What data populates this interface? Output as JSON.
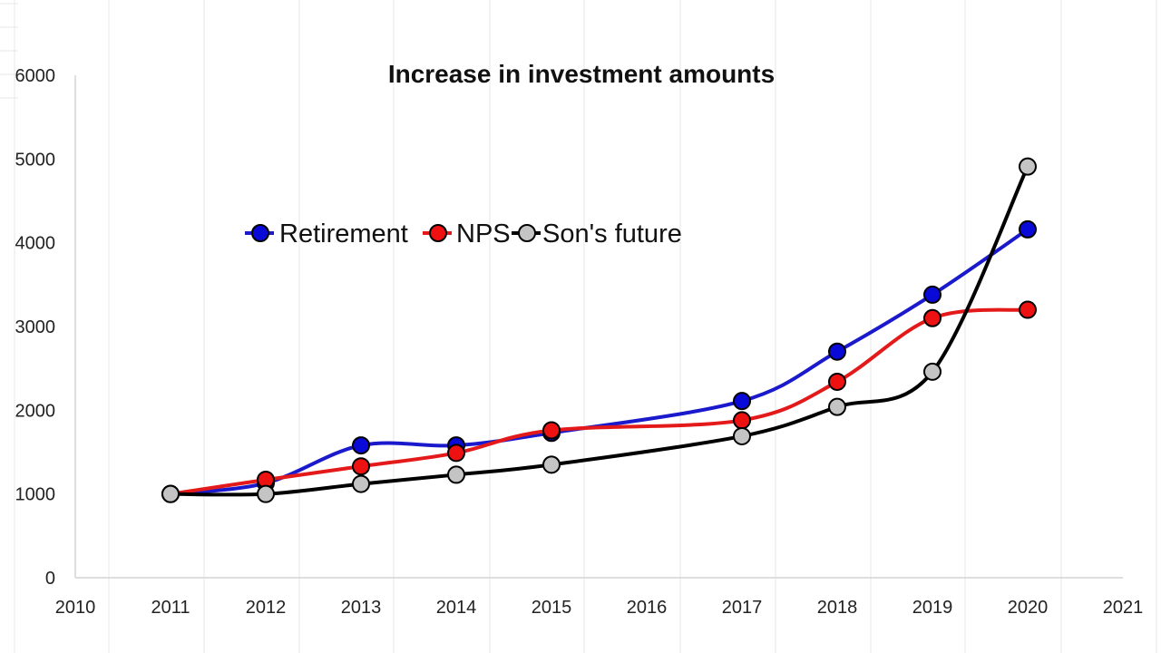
{
  "chart_data": {
    "type": "line",
    "title": "Increase in investment amounts",
    "xlabel": "",
    "ylabel": "",
    "xlim": [
      2010,
      2021
    ],
    "ylim": [
      0,
      6000
    ],
    "x_ticks": [
      "2010",
      "2011",
      "2012",
      "2013",
      "2014",
      "2015",
      "2016",
      "2017",
      "2018",
      "2019",
      "2020",
      "2021"
    ],
    "y_ticks": [
      "0",
      "1000",
      "2000",
      "3000",
      "4000",
      "5000",
      "6000"
    ],
    "grid": false,
    "smooth": true,
    "legend_position": "inside-top-left",
    "series": [
      {
        "name": "Retirement",
        "line_color": "#1a1acc",
        "marker_color": "#0a0ad8",
        "x": [
          2011,
          2012,
          2013,
          2014,
          2015,
          2017,
          2018,
          2019,
          2020
        ],
        "y": [
          1000,
          1130,
          1580,
          1580,
          1730,
          2110,
          2700,
          3380,
          4160
        ]
      },
      {
        "name": "NPS",
        "line_color": "#e41a1a",
        "marker_color": "#ee1111",
        "x": [
          2011,
          2012,
          2013,
          2014,
          2015,
          2017,
          2018,
          2019,
          2020
        ],
        "y": [
          1000,
          1170,
          1330,
          1490,
          1760,
          1880,
          2340,
          3100,
          3200
        ]
      },
      {
        "name": "Son's future",
        "line_color": "#000000",
        "marker_color": "#c4c4c4",
        "x": [
          2011,
          2012,
          2013,
          2014,
          2015,
          2017,
          2018,
          2019,
          2020
        ],
        "y": [
          1000,
          1000,
          1120,
          1230,
          1350,
          1690,
          2040,
          2460,
          4910
        ]
      }
    ]
  }
}
